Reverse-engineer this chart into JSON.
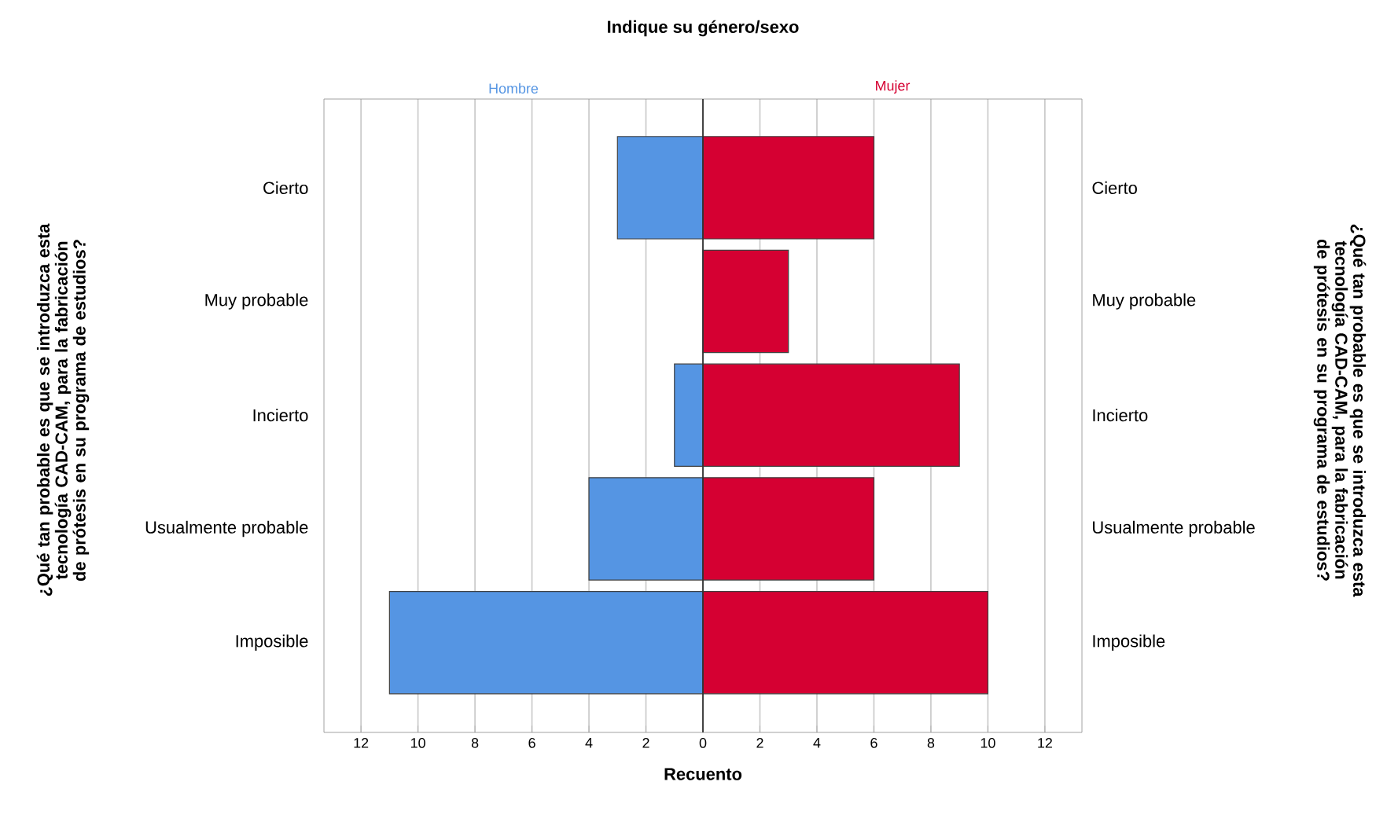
{
  "chart_data": {
    "type": "bar",
    "orientation": "horizontal",
    "title": "Indique su género/sexo",
    "categories": [
      "Cierto",
      "Muy probable",
      "Incierto",
      "Usualmente probable",
      "Imposible"
    ],
    "series": [
      {
        "name": "Hombre",
        "color": "#5595e3",
        "values": [
          -3,
          null,
          -1,
          -4,
          -11
        ]
      },
      {
        "name": "Mujer",
        "color": "#d50032",
        "values": [
          6,
          3,
          9,
          6,
          10
        ]
      }
    ],
    "xlabel": "Recuento",
    "annotations": [
      "¿Qué tan probable es que se introduzca esta tecnología CAD-CAM, para la fabricación de prótesis en su programa de estudios?",
      "¿Qué tan probable es que se introduzca esta tecnología CAD-CAM, para la fabricación de prótesis en su programa de estudios?"
    ],
    "stacked": true,
    "xlim": [
      -13.3,
      13.3
    ],
    "xticks": [
      {
        "value": -12,
        "label": "12"
      },
      {
        "value": -10,
        "label": "10"
      },
      {
        "value": -8,
        "label": "8"
      },
      {
        "value": -6,
        "label": "6"
      },
      {
        "value": -4,
        "label": "4"
      },
      {
        "value": -2,
        "label": "2"
      },
      0,
      2,
      4,
      6,
      8,
      10,
      12
    ],
    "grid": "x",
    "ref_lines": [
      {
        "axis": "x",
        "value": 0,
        "color": "#333333"
      }
    ]
  }
}
